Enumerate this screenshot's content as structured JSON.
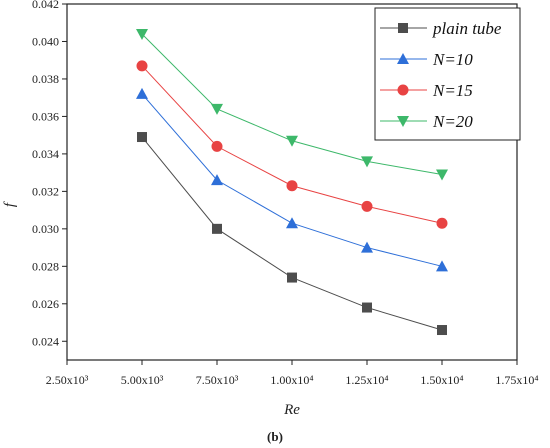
{
  "caption": "(b)",
  "chart_data": {
    "type": "line",
    "title": "",
    "xlabel": "Re",
    "ylabel": "f",
    "xlim": [
      2500,
      17500
    ],
    "ylim": [
      0.023,
      0.042
    ],
    "x_ticks": [
      2500,
      5000,
      7500,
      10000,
      12500,
      15000,
      17500
    ],
    "x_tick_labels": [
      "2.50x10³",
      "5.00x10³",
      "7.50x10³",
      "1.00x10⁴",
      "1.25x10⁴",
      "1.50x10⁴",
      "1.75x10⁴"
    ],
    "y_ticks": [
      0.024,
      0.026,
      0.028,
      0.03,
      0.032,
      0.034,
      0.036,
      0.038,
      0.04,
      0.042
    ],
    "y_tick_labels": [
      "0.024",
      "0.026",
      "0.028",
      "0.030",
      "0.032",
      "0.034",
      "0.036",
      "0.038",
      "0.040",
      "0.042"
    ],
    "grid": false,
    "legend_position": "top-right",
    "x": [
      5000,
      7500,
      10000,
      12500,
      15000
    ],
    "series": [
      {
        "name": "plain tube",
        "values": [
          0.0349,
          0.03,
          0.0274,
          0.0258,
          0.0246
        ],
        "color": "#4d4d4d",
        "marker": "square"
      },
      {
        "name": "N=10",
        "values": [
          0.0372,
          0.0326,
          0.0303,
          0.029,
          0.028
        ],
        "color": "#2e6fd8",
        "marker": "triangle-up"
      },
      {
        "name": "N=15",
        "values": [
          0.0387,
          0.0344,
          0.0323,
          0.0312,
          0.0303
        ],
        "color": "#e84343",
        "marker": "circle"
      },
      {
        "name": "N=20",
        "values": [
          0.0404,
          0.0364,
          0.0347,
          0.0336,
          0.0329
        ],
        "color": "#3db86a",
        "marker": "triangle-down"
      }
    ]
  }
}
